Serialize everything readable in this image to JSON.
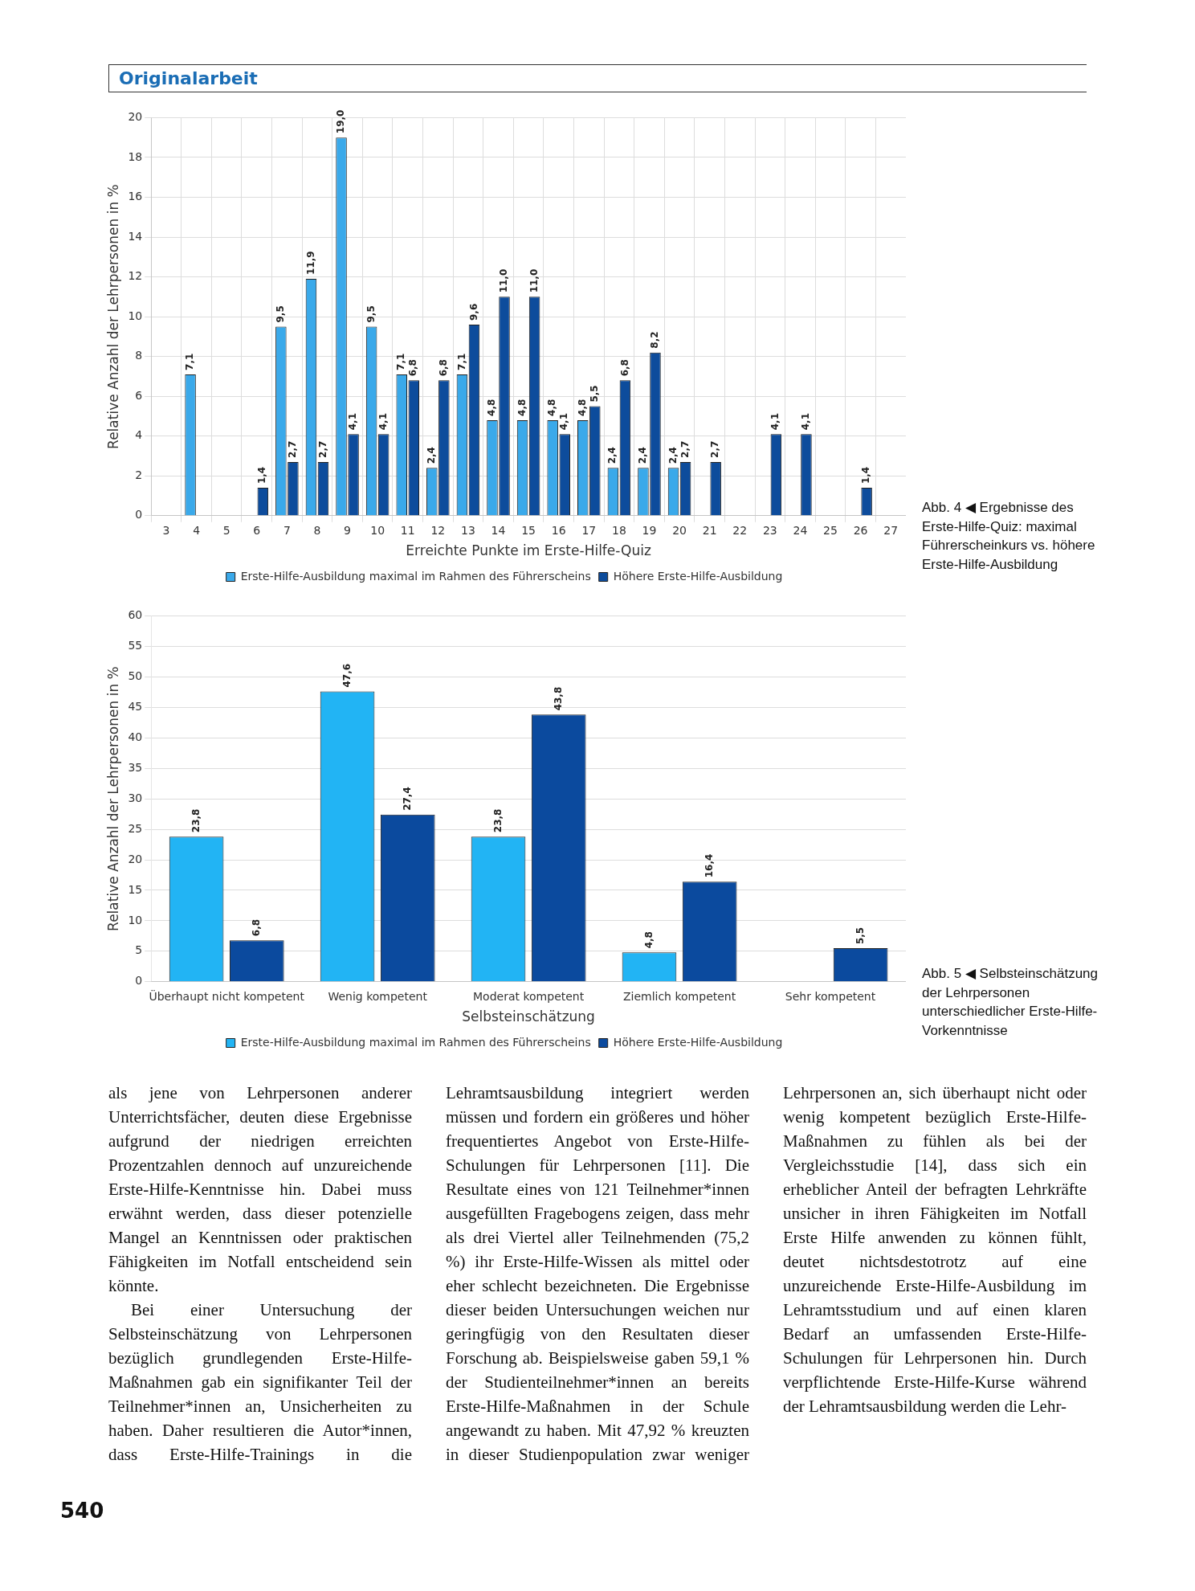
{
  "chart_data": [
    {
      "type": "other",
      "title": "Originalarbeit"
    },
    {
      "type": "bar",
      "xlabel": "Erreichte Punkte im Erste-Hilfe-Quiz",
      "ylabel": "Relative Anzahl der Lehrpersonen in %",
      "categories": [
        "3",
        "4",
        "5",
        "6",
        "7",
        "8",
        "9",
        "10",
        "11",
        "12",
        "13",
        "14",
        "15",
        "16",
        "17",
        "18",
        "19",
        "20",
        "21",
        "22",
        "23",
        "24",
        "25",
        "26",
        "27"
      ],
      "series": [
        {
          "name": "Erste-Hilfe-Ausbildung maximal im Rahmen des Führerscheins",
          "color": "#3aa9ea",
          "values": [
            null,
            7.1,
            null,
            null,
            9.5,
            11.9,
            19.0,
            9.5,
            7.1,
            2.4,
            7.1,
            4.8,
            4.8,
            4.8,
            4.8,
            2.4,
            2.4,
            2.4,
            null,
            null,
            null,
            null,
            null,
            null,
            null
          ],
          "value_labels": [
            null,
            "7,1",
            null,
            null,
            "9,5",
            "11,9",
            "19,0",
            "9,5",
            "7,1",
            "2,4",
            "7,1",
            "4,8",
            "4,8",
            "4,8",
            "4,8",
            "2,4",
            "2,4",
            "2,4",
            null,
            null,
            null,
            null,
            null,
            null,
            null
          ]
        },
        {
          "name": "Höhere Erste-Hilfe-Ausbildung",
          "color": "#0d4c9c",
          "values": [
            null,
            null,
            null,
            1.4,
            2.7,
            2.7,
            4.1,
            4.1,
            6.8,
            6.8,
            9.6,
            11.0,
            11.0,
            4.1,
            5.5,
            6.8,
            8.2,
            2.7,
            2.7,
            null,
            4.1,
            4.1,
            null,
            1.4,
            null
          ],
          "value_labels": [
            null,
            null,
            null,
            "1,4",
            "2,7",
            "2,7",
            "4,1",
            "4,1",
            "6,8",
            "6,8",
            "9,6",
            "11,0",
            "11,0",
            "4,1",
            "5,5",
            "6,8",
            "8,2",
            "2,7",
            "2,7",
            null,
            "4,1",
            "4,1",
            null,
            "1,4",
            null
          ]
        }
      ],
      "ylim": [
        0,
        20
      ],
      "yticks": [
        0,
        2,
        4,
        6,
        8,
        10,
        12,
        14,
        16,
        18,
        20
      ],
      "grid": true,
      "legend": "bottom",
      "annotations": [
        "Abb. 4 ◀ Ergebnisse des Erste-Hilfe-Quiz: maximal Führerscheinkurs vs. höhere Erste-Hilfe-Ausbildung"
      ]
    },
    {
      "type": "bar",
      "xlabel": "Selbsteinschätzung",
      "ylabel": "Relative Anzahl der Lehrpersonen in %",
      "categories": [
        "Überhaupt nicht kompetent",
        "Wenig kompetent",
        "Moderat kompetent",
        "Ziemlich kompetent",
        "Sehr kompetent"
      ],
      "series": [
        {
          "name": "Erste-Hilfe-Ausbildung maximal im Rahmen des Führerscheins",
          "color": "#22b4f4",
          "values": [
            23.8,
            47.6,
            23.8,
            4.8,
            null
          ],
          "value_labels": [
            "23,8",
            "47,6",
            "23,8",
            "4,8",
            null
          ]
        },
        {
          "name": "Höhere Erste-Hilfe-Ausbildung",
          "color": "#0b4a9e",
          "values": [
            6.8,
            27.4,
            43.8,
            16.4,
            5.5
          ],
          "value_labels": [
            "6,8",
            "27,4",
            "43,8",
            "16,4",
            "5,5"
          ]
        }
      ],
      "ylim": [
        0,
        60
      ],
      "yticks": [
        0,
        5,
        10,
        15,
        20,
        25,
        30,
        35,
        40,
        45,
        50,
        55,
        60
      ],
      "grid": "y",
      "legend": "bottom",
      "annotations": [
        "Abb. 5 ◀ Selbsteinschätzung der Lehrpersonen unterschiedlicher Erste-Hilfe-Vorkenntnisse"
      ]
    },
    {
      "type": "other",
      "annotations": [
        "als jene von Lehrpersonen anderer Unterrichtsfächer, deuten diese Ergebnisse aufgrund der niedrigen erreichten Prozentzahlen dennoch auf unzureichende Erste-Hilfe-Kenntnisse hin. Dabei muss erwähnt werden, dass dieser potenzielle Mangel an Kenntnissen oder praktischen Fähigkeiten im Notfall entscheidend sein könnte.",
        "Bei einer Untersuchung der Selbsteinschätzung von Lehrpersonen bezüglich grundlegenden Erste-Hilfe-Maßnahmen gab ein signifikanter Teil der Teilnehmer*innen an, Unsicherheiten zu haben. Daher resultieren die Autor*innen, dass Erste-Hilfe-Trainings in die Lehramtsausbildung integriert werden müssen und fordern ein größeres und höher frequentiertes Angebot von Erste-Hilfe-Schulungen für Lehrpersonen [11]. Die Resultate eines von 121 Teilnehmer*innen ausgefüllten Fragebogens zeigen, dass mehr als drei Viertel aller Teilnehmenden (75,2 %) ihr Erste-Hilfe-Wissen als mittel oder eher schlecht bezeichneten. Die Ergebnisse dieser beiden Untersuchungen weichen nur geringfügig von den Resultaten dieser Forschung ab. Beispielsweise gaben 59,1 % der Studienteilnehmer*innen an bereits Erste-Hilfe-Maßnahmen in der Schule angewandt zu haben. Mit 47,92 % kreuzten in dieser Studienpopulation zwar weniger Lehrpersonen an, sich überhaupt nicht oder wenig kompetent bezüglich Erste-Hilfe-Maßnahmen zu fühlen als bei der Vergleichsstudie [14], dass sich ein erheblicher Anteil der befragten Lehrkräfte unsicher in ihren Fähigkeiten im Notfall Erste Hilfe anwenden zu können fühlt, deutet nichtsdestotrotz auf eine unzureichende Erste-Hilfe-Ausbildung im Lehramtsstudium und auf einen klaren Bedarf an umfassenden Erste-Hilfe-Schulungen für Lehrpersonen hin. Durch verpflichtende Erste-Hilfe-Kurse während der Lehramtsausbildung werden die Lehr-",
        "540"
      ]
    }
  ]
}
